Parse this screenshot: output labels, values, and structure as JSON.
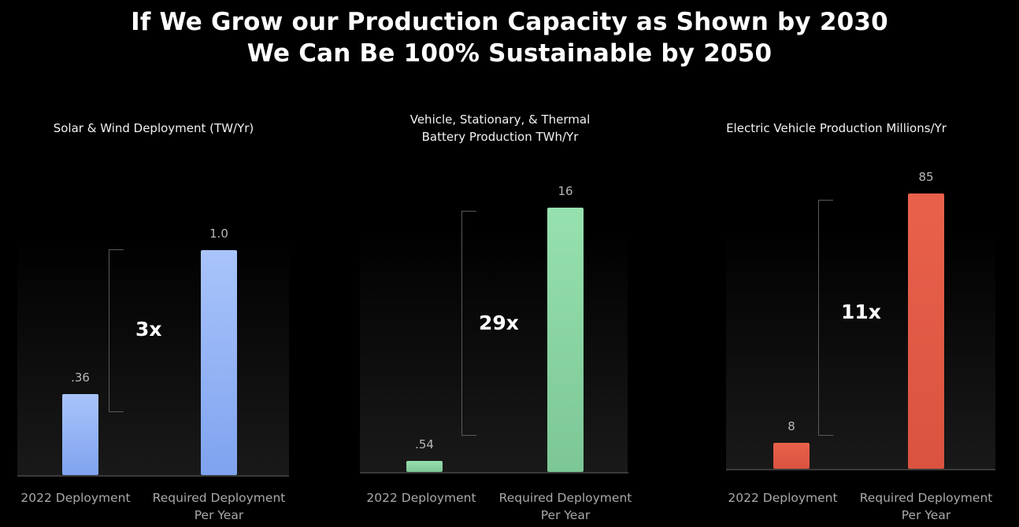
{
  "title_line1": "If We Grow our Production Capacity as Shown by 2030",
  "title_line2": "We Can Be 100% Sustainable by 2050",
  "chart_data": [
    {
      "type": "bar",
      "title": "Solar & Wind Deployment (TW/Yr)",
      "categories": [
        "2022 Deployment",
        "Required Deployment\nPer Year"
      ],
      "values": [
        0.36,
        1.0
      ],
      "value_labels": [
        ".36",
        "1.0"
      ],
      "multiplier": "3x",
      "colors": [
        "#8fb2f5",
        "#8fb2f5"
      ]
    },
    {
      "type": "bar",
      "title": "Vehicle, Stationary, & Thermal\nBattery Production TWh/Yr",
      "categories": [
        "2022 Deployment",
        "Required Deployment\nPer Year"
      ],
      "values": [
        0.54,
        16
      ],
      "value_labels": [
        ".54",
        "16"
      ],
      "multiplier": "29x",
      "colors": [
        "#8cd9a4",
        "#8cd9a4"
      ]
    },
    {
      "type": "bar",
      "title": "Electric Vehicle Production Millions/Yr",
      "categories": [
        "2022 Deployment",
        "Required Deployment\nPer Year"
      ],
      "values": [
        8,
        85
      ],
      "value_labels": [
        "8",
        "85"
      ],
      "multiplier": "11x",
      "colors": [
        "#e8604c",
        "#e8604c"
      ]
    }
  ]
}
